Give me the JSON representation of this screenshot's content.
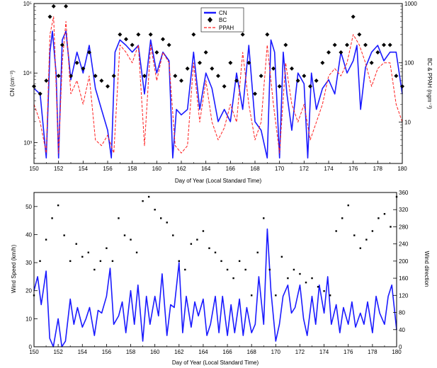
{
  "chart_data": [
    {
      "type": "line",
      "xlabel": "Day of Year (Local Standard Time)",
      "ylabel": "CN (cm⁻³)",
      "y2label": "BC & PPAH (ngm⁻³)",
      "xlim": [
        150,
        180
      ],
      "ylim": [
        500,
        100000
      ],
      "y2lim": [
        2,
        1000
      ],
      "yscale": "log",
      "y2scale": "log",
      "x_ticks": [
        "150",
        "152",
        "154",
        "156",
        "158",
        "160",
        "162",
        "164",
        "166",
        "168",
        "170",
        "172",
        "174",
        "176",
        "178",
        "180"
      ],
      "y_ticks": [
        {
          "value": 1000,
          "label": "10³"
        },
        {
          "value": 10000,
          "label": "10⁴"
        },
        {
          "value": 100000,
          "label": "10⁵"
        }
      ],
      "y2_ticks": [
        {
          "value": 10,
          "label": "10"
        },
        {
          "value": 100,
          "label": "100"
        },
        {
          "value": 1000,
          "label": "1000"
        }
      ],
      "legend": {
        "position": "top-center",
        "entries": [
          "CN",
          "BC",
          "PPAH"
        ]
      },
      "series": [
        {
          "name": "CN",
          "axis": "left",
          "style": "line",
          "color": "#1a1aff",
          "x": [
            150.0,
            150.5,
            151.0,
            151.3,
            151.5,
            151.8,
            152.0,
            152.3,
            152.6,
            153.0,
            153.5,
            154.0,
            154.5,
            155.0,
            155.5,
            156.0,
            156.3,
            156.6,
            157.0,
            157.5,
            158.0,
            158.5,
            159.0,
            159.5,
            160.0,
            160.5,
            161.0,
            161.3,
            161.6,
            162.0,
            162.5,
            163.0,
            163.5,
            164.0,
            164.5,
            165.0,
            165.5,
            166.0,
            166.5,
            167.0,
            167.5,
            168.0,
            168.5,
            169.0,
            169.3,
            169.6,
            170.0,
            170.3,
            170.6,
            171.0,
            171.5,
            172.0,
            172.3,
            172.6,
            173.0,
            173.5,
            174.0,
            174.5,
            175.0,
            175.5,
            176.0,
            176.3,
            176.6,
            177.0,
            177.5,
            178.0,
            178.5,
            179.0,
            179.5,
            180.0
          ],
          "values": [
            6000,
            5000,
            600,
            20000,
            40000,
            10000,
            600,
            30000,
            40000,
            8000,
            20000,
            10000,
            25000,
            6000,
            3000,
            1500,
            600,
            20000,
            30000,
            25000,
            20000,
            25000,
            5000,
            30000,
            10000,
            20000,
            15000,
            600,
            3000,
            2500,
            3000,
            20000,
            3000,
            10000,
            6000,
            2000,
            3000,
            2000,
            10000,
            3000,
            25000,
            2000,
            1500,
            600,
            30000,
            20000,
            600,
            20000,
            5000,
            1500,
            10000,
            7000,
            600,
            10000,
            3000,
            6000,
            8000,
            5000,
            20000,
            10000,
            15000,
            25000,
            3000,
            12000,
            20000,
            25000,
            15000,
            20000,
            20000,
            5000
          ]
        },
        {
          "name": "BC",
          "axis": "right",
          "style": "markers",
          "color": "#000000",
          "x": [
            150.0,
            150.5,
            151.0,
            151.3,
            151.6,
            152.0,
            152.3,
            152.6,
            153.0,
            153.5,
            154.0,
            154.5,
            155.0,
            155.5,
            156.0,
            156.5,
            157.0,
            157.5,
            158.0,
            158.5,
            159.0,
            159.5,
            160.0,
            160.5,
            161.0,
            161.5,
            162.0,
            162.5,
            163.0,
            163.5,
            164.0,
            164.5,
            165.0,
            165.5,
            166.0,
            166.5,
            167.0,
            167.5,
            168.0,
            168.5,
            169.0,
            169.5,
            170.0,
            170.5,
            171.0,
            171.5,
            172.0,
            172.5,
            173.0,
            173.5,
            174.0,
            174.5,
            175.0,
            175.5,
            176.0,
            176.5,
            177.0,
            177.5,
            178.0,
            178.5,
            179.0,
            179.5,
            180.0
          ],
          "values": [
            40,
            30,
            50,
            600,
            900,
            60,
            200,
            900,
            60,
            100,
            80,
            150,
            60,
            50,
            40,
            60,
            300,
            250,
            200,
            300,
            60,
            300,
            150,
            250,
            200,
            60,
            50,
            80,
            300,
            100,
            150,
            80,
            60,
            40,
            100,
            50,
            300,
            100,
            30,
            60,
            300,
            80,
            40,
            200,
            80,
            50,
            60,
            40,
            50,
            100,
            150,
            200,
            150,
            200,
            600,
            300,
            200,
            100,
            150,
            200,
            200,
            60,
            40
          ]
        },
        {
          "name": "PPAH",
          "axis": "right",
          "style": "dashed",
          "color": "#ff2020",
          "x": [
            150.0,
            150.5,
            151.0,
            151.3,
            151.6,
            152.0,
            152.3,
            152.6,
            153.0,
            153.5,
            154.0,
            154.5,
            155.0,
            155.5,
            156.0,
            156.5,
            157.0,
            157.5,
            158.0,
            158.5,
            159.0,
            159.5,
            160.0,
            160.5,
            161.0,
            161.5,
            162.0,
            162.5,
            163.0,
            163.5,
            164.0,
            164.5,
            165.0,
            165.5,
            166.0,
            166.5,
            167.0,
            167.5,
            168.0,
            168.5,
            169.0,
            169.5,
            170.0,
            170.5,
            171.0,
            171.5,
            172.0,
            172.5,
            173.0,
            173.5,
            174.0,
            174.5,
            175.0,
            175.5,
            176.0,
            176.5,
            177.0,
            177.5,
            178.0,
            178.5,
            179.0,
            179.5,
            180.0
          ],
          "values": [
            20,
            10,
            3,
            300,
            600,
            3,
            100,
            500,
            30,
            50,
            20,
            60,
            5,
            4,
            6,
            3,
            200,
            150,
            100,
            200,
            4,
            200,
            50,
            150,
            100,
            4,
            3,
            4,
            100,
            10,
            50,
            10,
            5,
            8,
            20,
            10,
            150,
            20,
            5,
            10,
            200,
            20,
            3,
            100,
            20,
            10,
            20,
            5,
            10,
            20,
            60,
            80,
            60,
            100,
            300,
            200,
            100,
            40,
            80,
            100,
            100,
            20,
            10
          ]
        }
      ]
    },
    {
      "type": "line",
      "xlabel": "Day of Year (Local Standard Time)",
      "ylabel": "Wind Speed (km/h)",
      "y2label": "Wind direction",
      "xlim": [
        150,
        180
      ],
      "ylim": [
        0,
        55
      ],
      "y2lim": [
        0,
        360
      ],
      "x_ticks": [
        "150",
        "152",
        "154",
        "156",
        "158",
        "160",
        "162",
        "164",
        "166",
        "168",
        "170",
        "172",
        "174",
        "176",
        "178",
        "180"
      ],
      "y_ticks": [
        "0",
        "10",
        "20",
        "30",
        "40",
        "50"
      ],
      "y2_ticks": [
        "0",
        "40",
        "80",
        "120",
        "160",
        "200",
        "240",
        "280",
        "320",
        "360"
      ],
      "series": [
        {
          "name": "Wind Speed",
          "axis": "left",
          "style": "line",
          "color": "#1a1aff",
          "x": [
            150.0,
            150.3,
            150.6,
            151.0,
            151.3,
            151.6,
            152.0,
            152.3,
            152.6,
            153.0,
            153.3,
            153.6,
            154.0,
            154.3,
            154.6,
            155.0,
            155.3,
            155.6,
            156.0,
            156.3,
            156.6,
            157.0,
            157.3,
            157.6,
            158.0,
            158.3,
            158.6,
            159.0,
            159.3,
            159.6,
            160.0,
            160.3,
            160.6,
            161.0,
            161.3,
            161.6,
            162.0,
            162.3,
            162.6,
            163.0,
            163.3,
            163.6,
            164.0,
            164.3,
            164.6,
            165.0,
            165.3,
            165.6,
            166.0,
            166.3,
            166.6,
            167.0,
            167.3,
            167.6,
            168.0,
            168.3,
            168.6,
            169.0,
            169.3,
            169.6,
            170.0,
            170.3,
            170.6,
            171.0,
            171.3,
            171.6,
            172.0,
            172.3,
            172.6,
            173.0,
            173.3,
            173.6,
            174.0,
            174.3,
            174.6,
            175.0,
            175.3,
            175.6,
            176.0,
            176.3,
            176.6,
            177.0,
            177.3,
            177.6,
            178.0,
            178.3,
            178.6,
            179.0,
            179.3,
            179.6,
            180.0
          ],
          "values": [
            20,
            25,
            15,
            27,
            3,
            0,
            10,
            0,
            2,
            17,
            8,
            14,
            7,
            10,
            14,
            4,
            13,
            12,
            18,
            28,
            8,
            11,
            16,
            5,
            20,
            8,
            22,
            2,
            18,
            8,
            18,
            11,
            26,
            4,
            15,
            14,
            30,
            5,
            18,
            7,
            16,
            11,
            17,
            4,
            8,
            18,
            5,
            18,
            4,
            15,
            5,
            17,
            4,
            14,
            5,
            8,
            25,
            8,
            42,
            20,
            2,
            8,
            18,
            22,
            12,
            14,
            22,
            10,
            4,
            18,
            8,
            22,
            12,
            25,
            8,
            15,
            5,
            14,
            8,
            16,
            7,
            12,
            8,
            16,
            5,
            18,
            12,
            8,
            18,
            22,
            6
          ]
        },
        {
          "name": "Wind direction",
          "axis": "right",
          "style": "markers",
          "color": "#000000",
          "x": [
            150.0,
            150.5,
            151.0,
            151.5,
            152.0,
            152.5,
            153.0,
            153.5,
            154.0,
            154.5,
            155.0,
            155.5,
            156.0,
            156.5,
            157.0,
            157.5,
            158.0,
            158.5,
            159.0,
            159.5,
            160.0,
            160.5,
            161.0,
            161.5,
            162.0,
            162.5,
            163.0,
            163.5,
            164.0,
            164.5,
            165.0,
            165.5,
            166.0,
            166.5,
            167.0,
            167.5,
            168.0,
            168.5,
            169.0,
            169.5,
            170.0,
            170.5,
            171.0,
            171.5,
            172.0,
            172.5,
            173.0,
            173.5,
            174.0,
            174.5,
            175.0,
            175.5,
            176.0,
            176.5,
            177.0,
            177.5,
            178.0,
            178.5,
            179.0,
            179.5,
            180.0
          ],
          "values": [
            120,
            200,
            250,
            300,
            330,
            260,
            200,
            240,
            210,
            220,
            180,
            200,
            230,
            200,
            300,
            260,
            250,
            220,
            340,
            350,
            320,
            300,
            290,
            260,
            200,
            180,
            240,
            250,
            270,
            230,
            220,
            200,
            180,
            160,
            200,
            180,
            120,
            220,
            300,
            180,
            120,
            210,
            160,
            180,
            170,
            150,
            160,
            140,
            130,
            120,
            270,
            300,
            330,
            260,
            230,
            250,
            270,
            300,
            310,
            280,
            350
          ]
        }
      ]
    }
  ]
}
